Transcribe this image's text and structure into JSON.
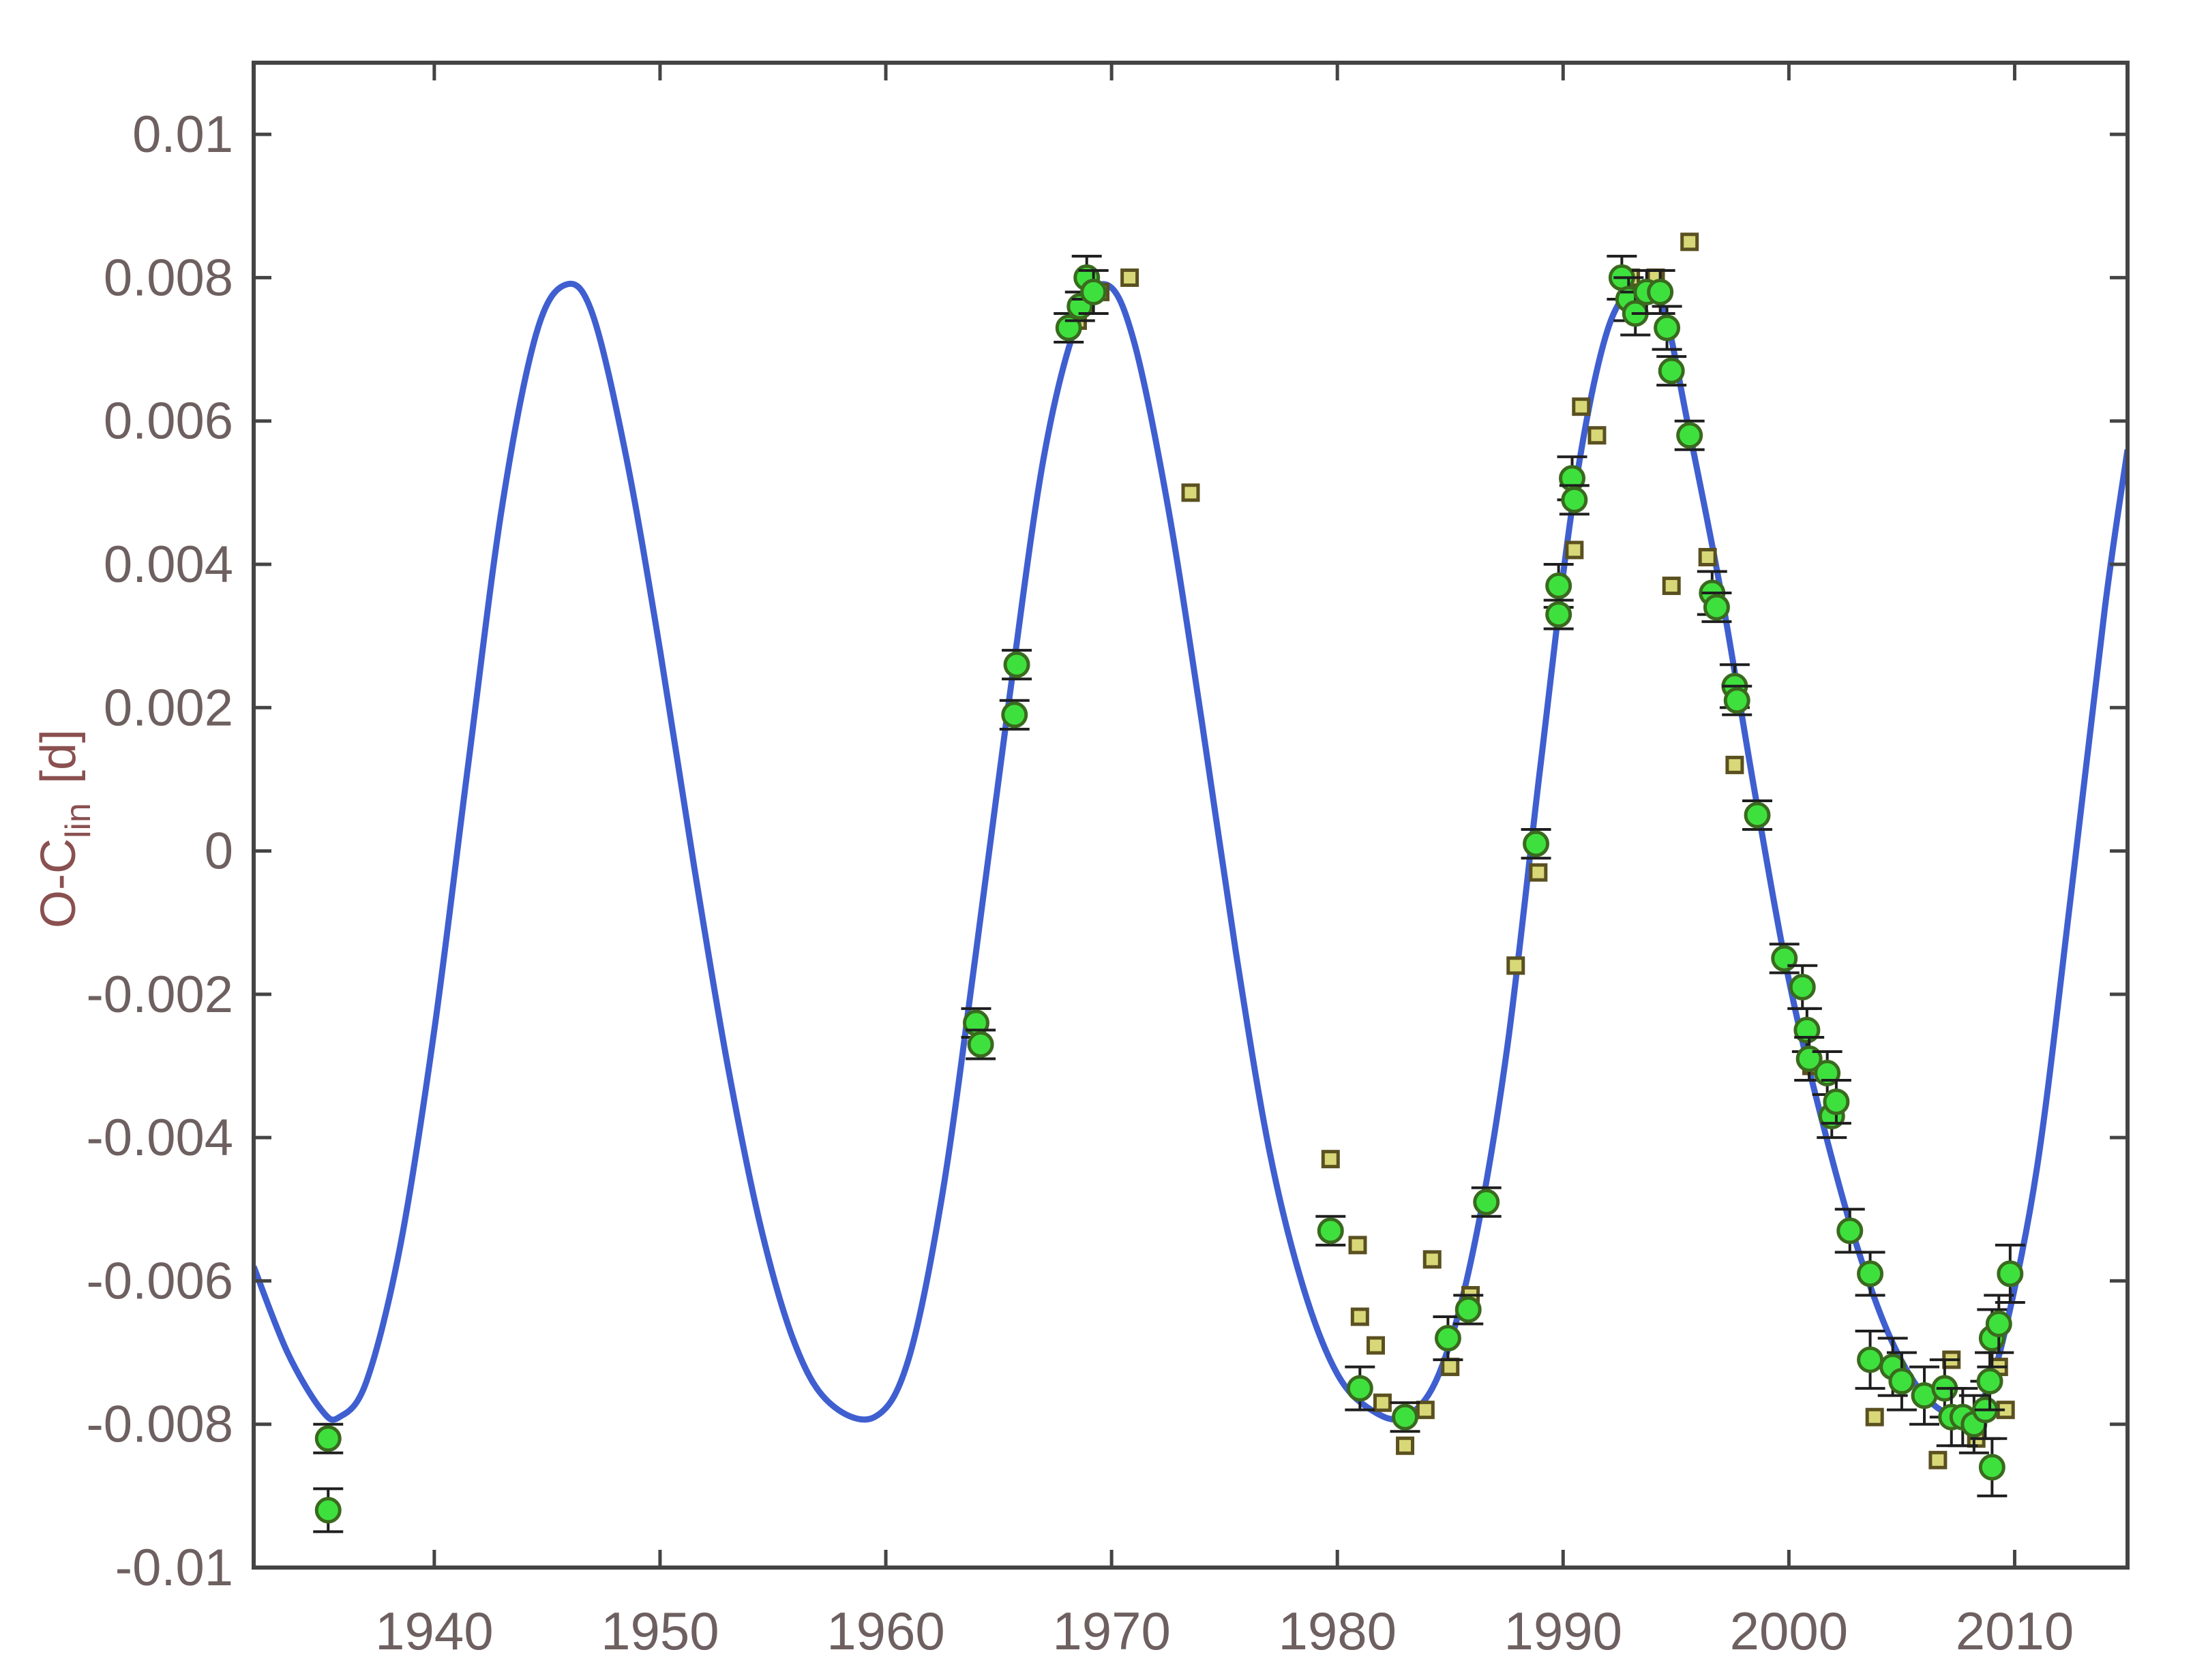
{
  "chart_data": {
    "type": "scatter",
    "title": "",
    "xlabel": "",
    "ylabel": "O-C",
    "ylabel_subscript": "lin",
    "ylabel_unit": "[d]",
    "xlim": [
      1932,
      2015
    ],
    "ylim": [
      -0.01,
      0.011
    ],
    "x_ticks": [
      1940,
      1950,
      1960,
      1970,
      1980,
      1990,
      2000,
      2010
    ],
    "x_tick_labels": [
      "1940",
      "1950",
      "1960",
      "1970",
      "1980",
      "1990",
      "2000",
      "2010"
    ],
    "y_ticks": [
      -0.01,
      -0.008,
      -0.006,
      -0.004,
      -0.002,
      0,
      0.002,
      0.004,
      0.006,
      0.008,
      0.01
    ],
    "y_tick_labels": [
      "-0.01",
      "-0.008",
      "-0.006",
      "-0.004",
      "-0.002",
      "0",
      "0.002",
      "0.004",
      "0.006",
      "0.008",
      "0.01"
    ],
    "grid": false,
    "legend": "none",
    "colors": {
      "fit_line": "#3f5fd0",
      "green_marker": "#3ee03e",
      "green_marker_edge": "#3a6a1e",
      "yellow_marker": "#d8d878",
      "yellow_marker_edge": "#5a5020",
      "error_bar": "#1e1e1e",
      "axis": "#444444",
      "tick_label": "#6e6060",
      "ylabel": "#8a5050"
    },
    "fit_curve": {
      "points": [
        [
          1932.0,
          -0.0058
        ],
        [
          1933.5,
          -0.007
        ],
        [
          1935.0,
          -0.0078
        ],
        [
          1935.8,
          -0.0079
        ],
        [
          1937.0,
          -0.0074
        ],
        [
          1938.5,
          -0.0055
        ],
        [
          1940.0,
          -0.0025
        ],
        [
          1941.5,
          0.0012
        ],
        [
          1943.0,
          0.0048
        ],
        [
          1944.5,
          0.0072
        ],
        [
          1945.8,
          0.0079
        ],
        [
          1947.0,
          0.0075
        ],
        [
          1948.5,
          0.0055
        ],
        [
          1950.0,
          0.0028
        ],
        [
          1951.5,
          -0.0002
        ],
        [
          1953.0,
          -0.003
        ],
        [
          1954.5,
          -0.0053
        ],
        [
          1956.0,
          -0.0069
        ],
        [
          1957.5,
          -0.0077
        ],
        [
          1959.5,
          -0.0079
        ],
        [
          1961.0,
          -0.0071
        ],
        [
          1962.5,
          -0.0048
        ],
        [
          1964.0,
          -0.0014
        ],
        [
          1965.5,
          0.0022
        ],
        [
          1967.0,
          0.0055
        ],
        [
          1968.5,
          0.0074
        ],
        [
          1969.8,
          0.0079
        ],
        [
          1971.0,
          0.0071
        ],
        [
          1972.5,
          0.0048
        ],
        [
          1974.0,
          0.0018
        ],
        [
          1975.5,
          -0.0014
        ],
        [
          1977.0,
          -0.0042
        ],
        [
          1978.5,
          -0.0061
        ],
        [
          1980.0,
          -0.0073
        ],
        [
          1981.5,
          -0.0078
        ],
        [
          1983.0,
          -0.0079
        ],
        [
          1984.5,
          -0.0073
        ],
        [
          1986.0,
          -0.0056
        ],
        [
          1987.5,
          -0.0028
        ],
        [
          1989.0,
          0.0012
        ],
        [
          1990.5,
          0.005
        ],
        [
          1992.0,
          0.0073
        ],
        [
          1993.5,
          0.0079
        ],
        [
          1994.5,
          0.0075
        ],
        [
          1995.5,
          0.006
        ],
        [
          1997.0,
          0.0036
        ],
        [
          1998.5,
          0.0008
        ],
        [
          2000.0,
          -0.0018
        ],
        [
          2001.5,
          -0.0038
        ],
        [
          2003.0,
          -0.0055
        ],
        [
          2004.5,
          -0.0068
        ],
        [
          2006.0,
          -0.0076
        ],
        [
          2007.5,
          -0.0079
        ],
        [
          2008.5,
          -0.0077
        ],
        [
          2009.5,
          -0.0068
        ],
        [
          2011.0,
          -0.0044
        ],
        [
          2012.5,
          -0.0006
        ],
        [
          2014.0,
          0.0034
        ],
        [
          2015.0,
          0.0056
        ]
      ]
    },
    "series": [
      {
        "marker": "green-circle",
        "points": [
          [
            1935.3,
            -0.0082,
            0.0002
          ],
          [
            1935.3,
            -0.0092,
            0.0003
          ],
          [
            1964.0,
            -0.0024,
            0.0002
          ],
          [
            1964.2,
            -0.0027,
            0.0002
          ],
          [
            1965.8,
            0.0026,
            0.0002
          ],
          [
            1965.7,
            0.0019,
            0.0002
          ],
          [
            1968.1,
            0.0073,
            0.0002
          ],
          [
            1968.6,
            0.0076,
            0.0002
          ],
          [
            1968.9,
            0.008,
            0.0003
          ],
          [
            1969.2,
            0.0078,
            0.0003
          ],
          [
            1979.7,
            -0.0053,
            0.0002
          ],
          [
            1981.0,
            -0.0075,
            0.0003
          ],
          [
            1983.0,
            -0.0079,
            0.0002
          ],
          [
            1984.9,
            -0.0068,
            0.0003
          ],
          [
            1985.8,
            -0.0064,
            0.0002
          ],
          [
            1986.6,
            -0.0049,
            0.0002
          ],
          [
            1988.8,
            0.0001,
            0.0002
          ],
          [
            1989.8,
            0.0037,
            0.0003
          ],
          [
            1989.8,
            0.0033,
            0.0002
          ],
          [
            1990.4,
            0.0052,
            0.0003
          ],
          [
            1990.5,
            0.0049,
            0.0002
          ],
          [
            1992.6,
            0.008,
            0.0003
          ],
          [
            1992.9,
            0.0077,
            0.0003
          ],
          [
            1993.2,
            0.0075,
            0.0003
          ],
          [
            1993.7,
            0.0078,
            0.0003
          ],
          [
            1994.3,
            0.0078,
            0.0003
          ],
          [
            1994.6,
            0.0073,
            0.0003
          ],
          [
            1994.8,
            0.0067,
            0.0002
          ],
          [
            1995.6,
            0.0058,
            0.0002
          ],
          [
            1996.6,
            0.0036,
            0.0003
          ],
          [
            1996.8,
            0.0034,
            0.0002
          ],
          [
            1997.6,
            0.0023,
            0.0003
          ],
          [
            1997.7,
            0.0021,
            0.0002
          ],
          [
            1998.6,
            0.0005,
            0.0002
          ],
          [
            1999.8,
            -0.0015,
            0.0002
          ],
          [
            2000.6,
            -0.0019,
            0.0003
          ],
          [
            2000.8,
            -0.0025,
            0.0003
          ],
          [
            2000.9,
            -0.0029,
            0.0003
          ],
          [
            2001.7,
            -0.0031,
            0.0003
          ],
          [
            2001.9,
            -0.0037,
            0.0003
          ],
          [
            2002.1,
            -0.0035,
            0.0003
          ],
          [
            2002.7,
            -0.0053,
            0.0003
          ],
          [
            2003.6,
            -0.0059,
            0.0003
          ],
          [
            2003.6,
            -0.0071,
            0.0004
          ],
          [
            2004.6,
            -0.0072,
            0.0004
          ],
          [
            2005.0,
            -0.0074,
            0.0004
          ],
          [
            2006.0,
            -0.0076,
            0.0004
          ],
          [
            2006.9,
            -0.0075,
            0.0004
          ],
          [
            2007.2,
            -0.0079,
            0.0004
          ],
          [
            2007.7,
            -0.0079,
            0.0004
          ],
          [
            2008.2,
            -0.008,
            0.0004
          ],
          [
            2008.7,
            -0.0078,
            0.0004
          ],
          [
            2008.9,
            -0.0074,
            0.0004
          ],
          [
            2009.0,
            -0.0068,
            0.0004
          ],
          [
            2009.3,
            -0.0066,
            0.0004
          ],
          [
            2009.0,
            -0.0086,
            0.0004
          ],
          [
            2009.8,
            -0.0059,
            0.0004
          ]
        ]
      },
      {
        "marker": "yellow-square",
        "points": [
          [
            1968.5,
            0.0074
          ],
          [
            1969.5,
            0.0078
          ],
          [
            1970.8,
            0.008
          ],
          [
            1973.5,
            0.005
          ],
          [
            1979.7,
            -0.0043
          ],
          [
            1980.9,
            -0.0055
          ],
          [
            1981.0,
            -0.0065
          ],
          [
            1981.7,
            -0.0069
          ],
          [
            1982.0,
            -0.0077
          ],
          [
            1983.0,
            -0.0083
          ],
          [
            1983.9,
            -0.0078
          ],
          [
            1984.2,
            -0.0057
          ],
          [
            1985.0,
            -0.0072
          ],
          [
            1985.9,
            -0.0062
          ],
          [
            1987.9,
            -0.0016
          ],
          [
            1988.9,
            -0.0003
          ],
          [
            1990.5,
            0.0042
          ],
          [
            1990.8,
            0.0062
          ],
          [
            1991.5,
            0.0058
          ],
          [
            1993.0,
            0.008
          ],
          [
            1994.1,
            0.008
          ],
          [
            1994.8,
            0.0037
          ],
          [
            1995.6,
            0.0085
          ],
          [
            1996.4,
            0.0041
          ],
          [
            1997.6,
            0.0012
          ],
          [
            2001.0,
            -0.003
          ],
          [
            2003.8,
            -0.0079
          ],
          [
            2006.6,
            -0.0085
          ],
          [
            2007.2,
            -0.0071
          ],
          [
            2008.3,
            -0.0082
          ],
          [
            2009.3,
            -0.0072
          ],
          [
            2009.6,
            -0.0078
          ]
        ]
      }
    ]
  }
}
